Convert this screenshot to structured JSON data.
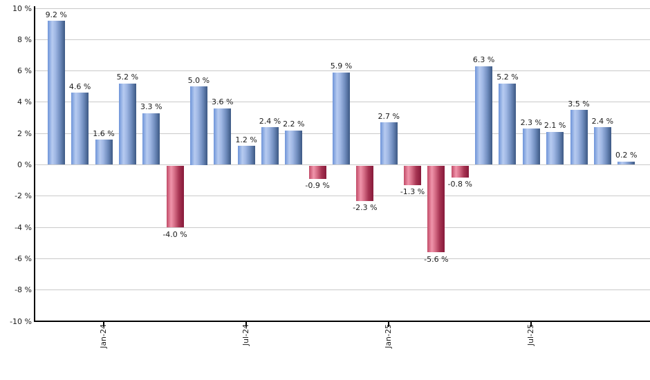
{
  "chart": {
    "background": "#ffffff",
    "grid_color": "#c9c9c9",
    "axis_color": "#000000",
    "label_color": "#1b1b1b",
    "positive_bar_gradient": [
      "#6e94d8",
      "#b7cbf0",
      "#9fb7e4",
      "#6f8cbd",
      "#3c5884"
    ],
    "negative_bar_gradient": [
      "#c14a67",
      "#f095ab",
      "#d76f88",
      "#a63452",
      "#87193a"
    ]
  },
  "chart_data": {
    "type": "bar",
    "title": "",
    "xlabel": "",
    "ylabel": "",
    "unit": "%",
    "values": [
      9.2,
      4.6,
      1.6,
      5.2,
      3.3,
      -4.0,
      5.0,
      3.6,
      1.2,
      2.4,
      2.2,
      -0.9,
      5.9,
      -2.3,
      2.7,
      -1.3,
      -5.6,
      -0.8,
      6.3,
      5.2,
      2.3,
      2.1,
      3.5,
      2.4,
      0.2
    ],
    "value_labels": [
      "9.2 %",
      "4.6 %",
      "1.6 %",
      "5.2 %",
      "3.3 %",
      "-4.0 %",
      "5.0 %",
      "3.6 %",
      "1.2 %",
      "2.4 %",
      "2.2 %",
      "-0.9 %",
      "5.9 %",
      "-2.3 %",
      "2.7 %",
      "-1.3 %",
      "-5.6 %",
      "-0.8 %",
      "6.3 %",
      "5.2 %",
      "2.3 %",
      "2.1 %",
      "3.5 %",
      "2.4 %",
      "0.2 %"
    ],
    "x_ticks": [
      {
        "index": 2,
        "label": "Jan-24"
      },
      {
        "index": 8,
        "label": "Jul-24"
      },
      {
        "index": 14,
        "label": "Jan-25"
      },
      {
        "index": 20,
        "label": "Jul-25"
      }
    ],
    "y_tick_labels": [
      "10 %",
      "8 %",
      "6 %",
      "4 %",
      "2 %",
      "0 %",
      "-2 %",
      "-4 %",
      "-6 %",
      "-8 %",
      "-10 %"
    ],
    "ylim": [
      -10,
      10
    ],
    "ytick_step": 2,
    "grid": true,
    "legend": false
  }
}
